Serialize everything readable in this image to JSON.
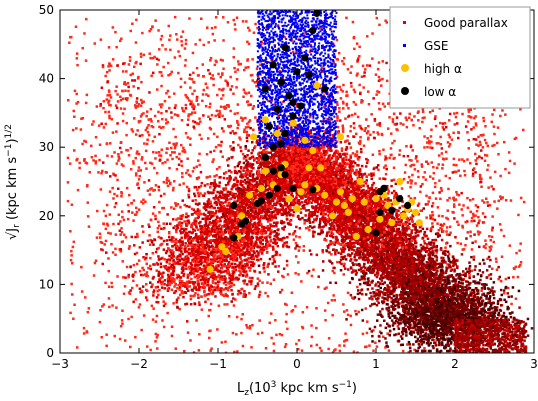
{
  "chart_data": {
    "type": "scatter",
    "title": "",
    "xlabel_main": "L",
    "xlabel_sub": "z",
    "xlabel_rest_a": "(10",
    "xlabel_sup": "3",
    "xlabel_rest_b": " kpc km s",
    "xlabel_sup2": "−1",
    "xlabel_rest_c": ")",
    "ylabel_text": "√J",
    "ylabel_sub": "r",
    "ylabel_rest": " (kpc km s",
    "ylabel_sup": "−1",
    "ylabel_rest2": ")",
    "ylabel_sup2": "1/2",
    "xlim": [
      -3,
      3
    ],
    "ylim": [
      0,
      50
    ],
    "xticks": [
      -3,
      -2,
      -1,
      0,
      1,
      2,
      3
    ],
    "xtick_labels": [
      "−3",
      "−2",
      "−1",
      "0",
      "1",
      "2",
      "3"
    ],
    "yticks": [
      0,
      10,
      20,
      30,
      40,
      50
    ],
    "ytick_labels": [
      "0",
      "10",
      "20",
      "30",
      "40",
      "50"
    ],
    "grid": false,
    "legend_position": "top-right",
    "series": [
      {
        "name": "Good parallax",
        "marker": "small-square",
        "color": "#e00000",
        "description_distribution": "dense V-shaped density; left arm from (−1.2, 12) up to (0, 30); right arm from (0, 30) down to (2, 4); diffuse halo across the panel"
      },
      {
        "name": "GSE",
        "marker": "small-square",
        "color": "#0000ee",
        "x_range": [
          -0.5,
          0.5
        ],
        "y_range": [
          30,
          50
        ]
      },
      {
        "name": "high α",
        "marker": "circle",
        "color": "#ffc000",
        "points": [
          [
            -1.1,
            12.2
          ],
          [
            -0.95,
            15.5
          ],
          [
            -0.9,
            14.8
          ],
          [
            -0.75,
            17.0
          ],
          [
            -0.7,
            20.0
          ],
          [
            -0.5,
            22.0
          ],
          [
            -0.45,
            24.0
          ],
          [
            -0.4,
            26.5
          ],
          [
            -0.3,
            24.5
          ],
          [
            -0.2,
            26.0
          ],
          [
            -0.15,
            27.5
          ],
          [
            -0.1,
            22.5
          ],
          [
            0.0,
            21.0
          ],
          [
            0.05,
            23.5
          ],
          [
            0.1,
            24.5
          ],
          [
            0.15,
            27.0
          ],
          [
            0.2,
            29.5
          ],
          [
            0.25,
            24.0
          ],
          [
            0.3,
            27.0
          ],
          [
            0.35,
            23.0
          ],
          [
            0.45,
            20.0
          ],
          [
            0.5,
            22.0
          ],
          [
            0.55,
            23.5
          ],
          [
            0.6,
            21.5
          ],
          [
            0.65,
            20.5
          ],
          [
            0.7,
            22.5
          ],
          [
            0.75,
            17.0
          ],
          [
            0.8,
            25.0
          ],
          [
            0.85,
            22.0
          ],
          [
            0.9,
            18.0
          ],
          [
            1.0,
            22.5
          ],
          [
            1.05,
            19.5
          ],
          [
            1.1,
            23.0
          ],
          [
            1.15,
            21.5
          ],
          [
            1.2,
            19.0
          ],
          [
            1.25,
            22.0
          ],
          [
            1.3,
            25.0
          ],
          [
            1.35,
            20.0
          ],
          [
            1.4,
            21.0
          ],
          [
            1.45,
            22.0
          ],
          [
            1.5,
            20.5
          ],
          [
            1.55,
            19.0
          ],
          [
            -0.55,
            31.5
          ],
          [
            0.55,
            31.5
          ],
          [
            0.25,
            39.0
          ],
          [
            0.1,
            31.0
          ],
          [
            -0.25,
            32.0
          ],
          [
            -0.05,
            33.5
          ],
          [
            -0.4,
            34.0
          ],
          [
            -0.6,
            23.0
          ]
        ]
      },
      {
        "name": "low α",
        "marker": "circle",
        "color": "#000000",
        "points": [
          [
            -0.8,
            16.8
          ],
          [
            -0.7,
            18.8
          ],
          [
            -0.65,
            19.2
          ],
          [
            -0.8,
            21.5
          ],
          [
            -0.5,
            21.8
          ],
          [
            -0.45,
            22.2
          ],
          [
            -0.35,
            23.0
          ],
          [
            -0.25,
            24.0
          ],
          [
            -0.2,
            27.0
          ],
          [
            -0.15,
            26.0
          ],
          [
            -0.3,
            26.5
          ],
          [
            -0.05,
            24.0
          ],
          [
            0.2,
            23.8
          ],
          [
            1.05,
            23.5
          ],
          [
            1.1,
            24.0
          ],
          [
            1.05,
            20.5
          ],
          [
            1.2,
            20.8
          ],
          [
            1.3,
            22.5
          ],
          [
            1.4,
            21.5
          ],
          [
            1.0,
            17.5
          ],
          [
            -0.4,
            28.5
          ],
          [
            -0.3,
            30.0
          ],
          [
            -0.2,
            30.5
          ],
          [
            -0.35,
            33.0
          ],
          [
            -0.15,
            32.0
          ],
          [
            -0.25,
            35.5
          ],
          [
            -0.05,
            34.5
          ],
          [
            0.05,
            36.0
          ],
          [
            -0.1,
            37.5
          ],
          [
            -0.2,
            39.5
          ],
          [
            -0.3,
            42.0
          ],
          [
            -0.4,
            38.5
          ],
          [
            0.0,
            41.0
          ],
          [
            0.1,
            43.0
          ],
          [
            0.2,
            47.0
          ],
          [
            0.25,
            49.5
          ],
          [
            -0.15,
            44.5
          ],
          [
            0.15,
            40.5
          ],
          [
            0.35,
            38.5
          ],
          [
            -0.05,
            36.5
          ]
        ]
      }
    ]
  }
}
